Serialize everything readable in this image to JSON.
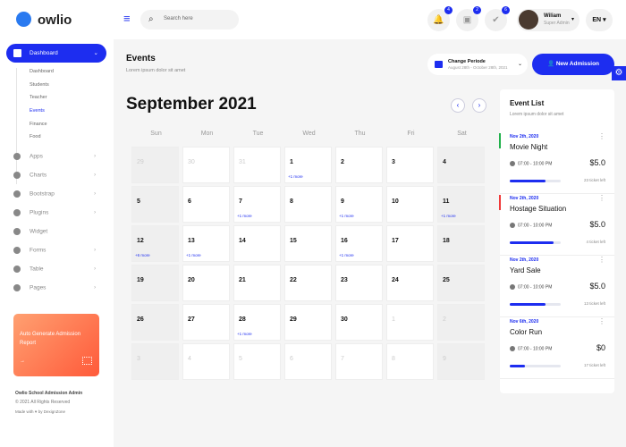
{
  "brand": "owlio",
  "search": {
    "placeholder": "Search here"
  },
  "notifications": [
    {
      "icon": "bell-icon",
      "count": "4"
    },
    {
      "icon": "gift-icon",
      "count": "2"
    },
    {
      "icon": "chat-check-icon",
      "count": "6"
    }
  ],
  "user": {
    "name": "Wiliam",
    "role": "Super Admin"
  },
  "language": "EN",
  "sidebar": {
    "active": "Dashboard",
    "sub": [
      "Dashboard",
      "Students",
      "Teacher",
      "Events",
      "Finance",
      "Food"
    ],
    "active_sub": "Events",
    "items": [
      "Apps",
      "Charts",
      "Bootstrap",
      "Plugins",
      "Widget",
      "Forms",
      "Table",
      "Pages"
    ],
    "promo": "Auto Generate Admission Report",
    "promo_arrow": "→",
    "footer_title": "Owlio School Admission Admin",
    "footer_copy": "© 2021 All Rights Reserved",
    "footer_made": "Made with",
    "footer_by": "by DexignZone"
  },
  "page": {
    "title": "Events",
    "subtitle": "Lorem ipsum dolor sit amet",
    "period_label": "Change Periode",
    "period_range": "August 28th - October 28th, 2021",
    "new_button": "New Admission"
  },
  "calendar": {
    "month": "September 2021",
    "days": [
      "Sun",
      "Mon",
      "Tue",
      "Wed",
      "Thu",
      "Fri",
      "Sat"
    ],
    "cells": [
      {
        "d": "29",
        "out": true
      },
      {
        "d": "30",
        "out": true
      },
      {
        "d": "31",
        "out": true
      },
      {
        "d": "1",
        "more": "+1 more"
      },
      {
        "d": "2"
      },
      {
        "d": "3"
      },
      {
        "d": "4"
      },
      {
        "d": "5"
      },
      {
        "d": "6"
      },
      {
        "d": "7",
        "more": "+1 more"
      },
      {
        "d": "8"
      },
      {
        "d": "9",
        "more": "+1 more"
      },
      {
        "d": "10"
      },
      {
        "d": "11",
        "more": "+1 more"
      },
      {
        "d": "12",
        "more": "+6 more"
      },
      {
        "d": "13",
        "more": "+1 more"
      },
      {
        "d": "14"
      },
      {
        "d": "15"
      },
      {
        "d": "16",
        "more": "+1 more"
      },
      {
        "d": "17"
      },
      {
        "d": "18"
      },
      {
        "d": "19"
      },
      {
        "d": "20"
      },
      {
        "d": "21"
      },
      {
        "d": "22"
      },
      {
        "d": "23"
      },
      {
        "d": "24"
      },
      {
        "d": "25"
      },
      {
        "d": "26"
      },
      {
        "d": "27"
      },
      {
        "d": "28",
        "more": "+1 more"
      },
      {
        "d": "29"
      },
      {
        "d": "30"
      },
      {
        "d": "1",
        "out": true
      },
      {
        "d": "2",
        "out": true
      },
      {
        "d": "3",
        "out": true
      },
      {
        "d": "4",
        "out": true
      },
      {
        "d": "5",
        "out": true
      },
      {
        "d": "6",
        "out": true
      },
      {
        "d": "7",
        "out": true
      },
      {
        "d": "8",
        "out": true
      },
      {
        "d": "9",
        "out": true
      }
    ]
  },
  "event_list": {
    "title": "Event List",
    "subtitle": "Lorem ipsum dolor sit amet",
    "events": [
      {
        "date": "Nov 2th, 2020",
        "name": "Movie Night",
        "time": "07:00 - 10:00 PM",
        "price": "$5.0",
        "progress": 0.7,
        "left": "23 ticket left",
        "accent": "#22b14c"
      },
      {
        "date": "Nov 2th, 2020",
        "name": "Hostage Situation",
        "time": "07:00 - 10:00 PM",
        "price": "$5.0",
        "progress": 0.86,
        "left": "4 ticket left",
        "accent": "#f03a3a"
      },
      {
        "date": "Nov 2th, 2020",
        "name": "Yard Sale",
        "time": "07:00 - 10:00 PM",
        "price": "$5.0",
        "progress": 0.7,
        "left": "13 ticket left",
        "accent": ""
      },
      {
        "date": "Nov 6th, 2020",
        "name": "Color Run",
        "time": "07:00 - 10:00 PM",
        "price": "$0",
        "progress": 0.3,
        "left": "17 ticket left",
        "accent": ""
      }
    ]
  },
  "colors": {
    "accent": "#1d2df0"
  }
}
